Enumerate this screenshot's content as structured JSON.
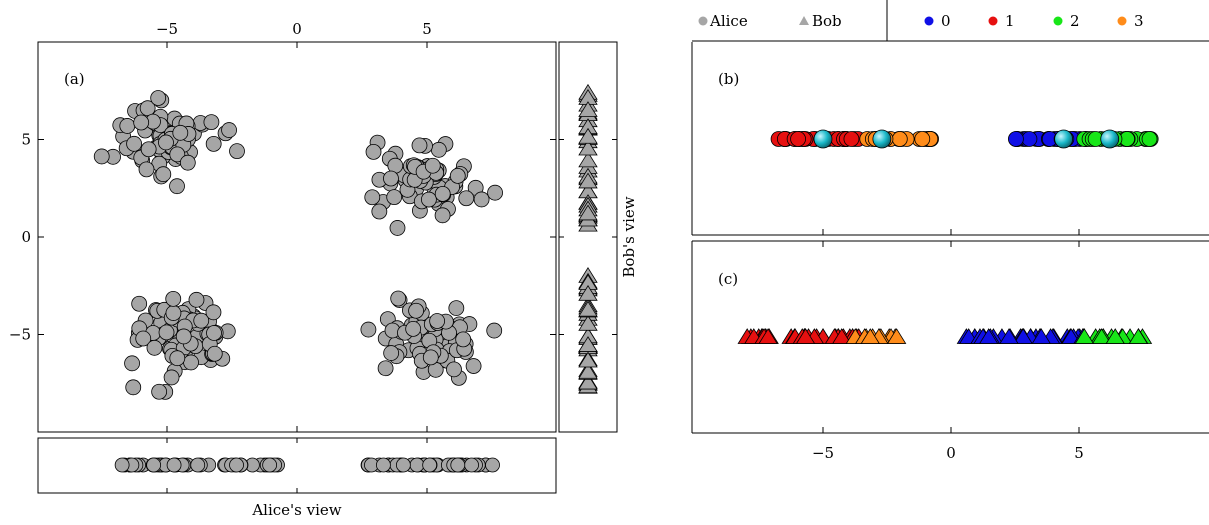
{
  "legend": {
    "alice_label": "Alice",
    "bob_label": "Bob",
    "cluster_labels": [
      "0",
      "1",
      "2",
      "3"
    ]
  },
  "colors": {
    "point_fill": "#a6a6a6",
    "stroke": "#000000",
    "cluster_0": "#1010e6",
    "cluster_1": "#e61010",
    "cluster_2": "#18e618",
    "cluster_3": "#ff8c1a",
    "centroid": "#19b8c8"
  },
  "chart_data": [
    {
      "id": "a",
      "type": "scatter",
      "panel_label": "(a)",
      "xlim": [
        -10,
        10
      ],
      "ylim": [
        -10,
        10
      ],
      "xticks": [
        -5,
        0,
        5
      ],
      "yticks": [
        -5,
        0,
        5
      ],
      "xtick_labels": [
        "−5",
        "0",
        "5"
      ],
      "ytick_labels": [
        "−5",
        "0",
        "5"
      ],
      "clusters": [
        {
          "center": [
            -5.0,
            5.0
          ],
          "spread": 0.95,
          "n": 75
        },
        {
          "center": [
            5.0,
            3.1
          ],
          "spread": 0.95,
          "n": 75
        },
        {
          "center": [
            -4.5,
            -5.0
          ],
          "spread": 0.95,
          "n": 80
        },
        {
          "center": [
            5.0,
            -5.2
          ],
          "spread": 0.95,
          "n": 75
        }
      ],
      "marginals": {
        "xlabel": "Alice's view",
        "ylabel": "Bob's view",
        "alice_x_range": [
          [
            -6.8,
            -0.7
          ],
          [
            2.5,
            7.8
          ]
        ],
        "bob_y_range": [
          [
            0.6,
            7.4
          ],
          [
            -7.8,
            -1.8
          ]
        ]
      }
    },
    {
      "id": "b",
      "type": "scatter",
      "panel_label": "(b)",
      "xlim": [
        -10,
        10
      ],
      "series": [
        {
          "name": "1",
          "x_range": [
            -7.0,
            -3.2
          ],
          "n": 30
        },
        {
          "name": "3",
          "x_range": [
            -3.3,
            -0.7
          ],
          "n": 22
        },
        {
          "name": "0",
          "x_range": [
            2.5,
            5.5
          ],
          "n": 30
        },
        {
          "name": "2",
          "x_range": [
            5.2,
            7.8
          ],
          "n": 22
        }
      ],
      "centroids_x": [
        -5.0,
        -2.7,
        4.4,
        6.2
      ]
    },
    {
      "id": "c",
      "type": "scatter",
      "panel_label": "(c)",
      "xlim": [
        -10,
        10
      ],
      "xticks": [
        -5,
        0,
        5
      ],
      "xtick_labels": [
        "−5",
        "0",
        "5"
      ],
      "series": [
        {
          "name": "1",
          "x_range": [
            -8.0,
            -3.6
          ],
          "n": 35
        },
        {
          "name": "3",
          "x_range": [
            -3.8,
            -2.0
          ],
          "n": 12
        },
        {
          "name": "0",
          "x_range": [
            0.6,
            5.3
          ],
          "n": 35
        },
        {
          "name": "2",
          "x_range": [
            5.2,
            7.6
          ],
          "n": 14
        }
      ]
    }
  ]
}
